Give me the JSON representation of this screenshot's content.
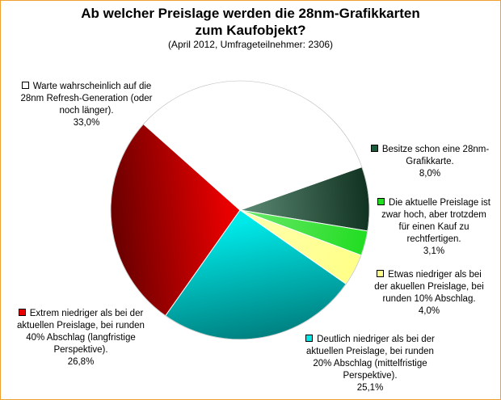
{
  "chart_data": {
    "type": "pie",
    "title_line1": "Ab welcher Preislage werden die 28nm-Grafikkarten",
    "title_line2": "zum Kaufobjekt?",
    "subtitle": "(April 2012, Umfrageteilnehmer: 2306)",
    "slices": [
      {
        "label": "Besitze schon eine 28nm-Grafikkarte.",
        "value": 8.0,
        "value_label": "8,0%",
        "color": "#1e5a3c"
      },
      {
        "label": "Die aktuelle Preislage ist zwar hoch, aber trotzdem für einen Kauf zu rechtfertigen.",
        "value": 3.1,
        "value_label": "3,1%",
        "color": "#22dd22"
      },
      {
        "label": "Etwas niedriger als bei der akuellen Preislage, bei runden 10% Abschlag.",
        "value": 4.0,
        "value_label": "4,0%",
        "color": "#ffff88"
      },
      {
        "label": "Deutlich niedriger als bei der aktuellen Preislage, bei runden 20% Abschlag (mittelfristige Perspektive).",
        "value": 25.1,
        "value_label": "25,1%",
        "color": "#00e8e8"
      },
      {
        "label": "Extrem niedriger als bei der aktuellen Preislage, bei runden 40% Abschlag (langfristige Perspektive).",
        "value": 26.8,
        "value_label": "26,8%",
        "color": "#e80000"
      },
      {
        "label": "Warte wahrscheinlich auf die 28nm Refresh-Generation (oder noch länger).",
        "value": 33.0,
        "value_label": "33,0%",
        "color": "#ffffff"
      }
    ]
  },
  "legend_lines": {
    "s0": [
      "Besitze schon eine 28nm-",
      "Grafikkarte."
    ],
    "s1": [
      "Die aktuelle Preislage ist",
      "zwar hoch, aber trotzdem",
      "für einen Kauf zu",
      "rechtfertigen."
    ],
    "s2": [
      "Etwas niedriger als bei",
      "der akuellen Preislage, bei",
      "runden 10% Abschlag."
    ],
    "s3": [
      "Deutlich niedriger als bei der",
      "aktuellen Preislage, bei runden",
      "20% Abschlag (mittelfristige",
      "Perspektive)."
    ],
    "s4": [
      "Extrem niedriger als bei der",
      "aktuellen Preislage, bei runden",
      "40% Abschlag (langfristige",
      "Perspektive)."
    ],
    "s5": [
      "Warte wahrscheinlich auf die",
      "28nm Refresh-Generation (oder",
      "noch länger)."
    ]
  }
}
